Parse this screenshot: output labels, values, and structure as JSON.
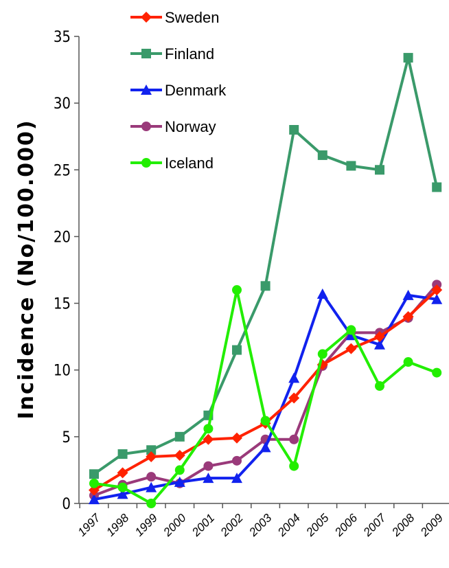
{
  "chart_data": {
    "type": "line",
    "ylabel": "Incidence (No/100.000)",
    "xlabel": "",
    "ylim": [
      0,
      35
    ],
    "yticks": [
      0,
      5,
      10,
      15,
      20,
      25,
      30,
      35
    ],
    "categories": [
      "1997",
      "1998",
      "1999",
      "2000",
      "2001",
      "2002",
      "2003",
      "2004",
      "2005",
      "2006",
      "2007",
      "2008",
      "2009"
    ],
    "legend_position": "top-left",
    "grid": false,
    "series": [
      {
        "name": "Sweden",
        "color": "#ff2200",
        "marker": "diamond",
        "values": [
          1.0,
          2.3,
          3.5,
          3.6,
          4.8,
          4.9,
          6.0,
          7.9,
          10.4,
          11.6,
          12.5,
          14.0,
          16.0
        ]
      },
      {
        "name": "Finland",
        "color": "#3a9a6a",
        "marker": "square",
        "values": [
          2.2,
          3.7,
          4.0,
          5.0,
          6.6,
          11.5,
          16.3,
          28.0,
          26.1,
          25.3,
          25.0,
          33.4,
          23.7
        ]
      },
      {
        "name": "Denmark",
        "color": "#1122ee",
        "marker": "triangle",
        "values": [
          0.3,
          0.7,
          1.2,
          1.6,
          1.9,
          1.9,
          4.2,
          9.4,
          15.7,
          12.6,
          11.9,
          15.6,
          15.3
        ]
      },
      {
        "name": "Norway",
        "color": "#9a3a7a",
        "marker": "circle",
        "values": [
          0.6,
          1.4,
          2.0,
          1.5,
          2.8,
          3.2,
          4.8,
          4.8,
          10.3,
          12.8,
          12.8,
          13.9,
          16.4
        ]
      },
      {
        "name": "Iceland",
        "color": "#22ee00",
        "marker": "circle",
        "values": [
          1.5,
          1.2,
          0.0,
          2.5,
          5.6,
          16.0,
          6.2,
          2.8,
          11.2,
          13.0,
          8.8,
          10.6,
          9.8
        ]
      }
    ]
  }
}
